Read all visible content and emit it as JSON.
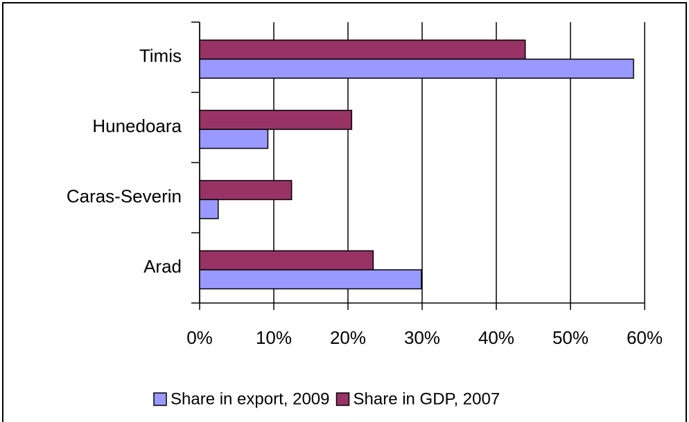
{
  "chart_data": {
    "type": "bar",
    "orientation": "horizontal",
    "categories": [
      "Timis",
      "Hunedoara",
      "Caras-Severin",
      "Arad"
    ],
    "series": [
      {
        "name": "Share in export, 2009",
        "color": "#9999ff",
        "values": [
          58.5,
          9.2,
          2.5,
          29.9
        ]
      },
      {
        "name": "Share in GDP, 2007",
        "color": "#993366",
        "values": [
          43.9,
          20.5,
          12.4,
          23.4
        ]
      }
    ],
    "xlim": [
      0,
      60
    ],
    "xticks": [
      {
        "value": 0,
        "label": "0%"
      },
      {
        "value": 10,
        "label": "10%"
      },
      {
        "value": 20,
        "label": "20%"
      },
      {
        "value": 30,
        "label": "30%"
      },
      {
        "value": 40,
        "label": "40%"
      },
      {
        "value": 50,
        "label": "50%"
      },
      {
        "value": 60,
        "label": "60%"
      }
    ],
    "grid": true,
    "legend": "bottom"
  }
}
